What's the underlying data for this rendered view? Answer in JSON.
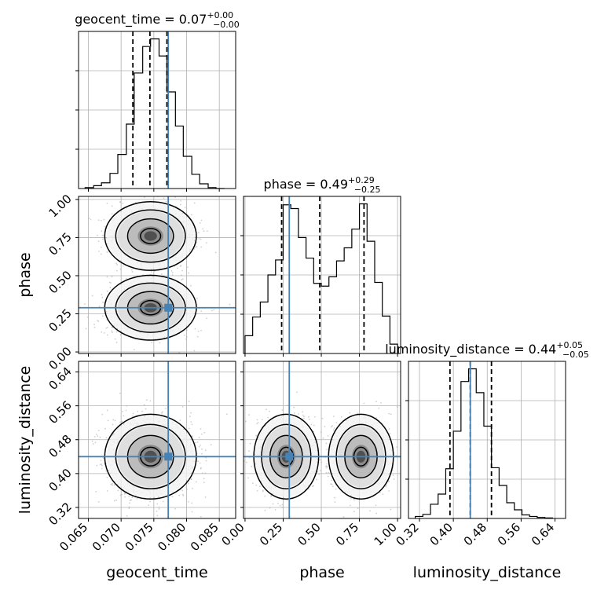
{
  "chart_data": {
    "type": "corner",
    "parameters": [
      "geocent_time",
      "phase",
      "luminosity_distance"
    ],
    "truth": {
      "geocent_time": 0.0772,
      "phase": 0.29,
      "luminosity_distance": 0.44
    },
    "titles": [
      {
        "name": "geocent_time",
        "value": "0.07",
        "plus": "+0.00",
        "minus": "−0.00"
      },
      {
        "name": "phase",
        "value": "0.49",
        "plus": "+0.29",
        "minus": "−0.25"
      },
      {
        "name": "luminosity_distance",
        "value": "0.44",
        "plus": "+0.05",
        "minus": "−0.05"
      }
    ],
    "axes": {
      "geocent_time": {
        "lim": [
          0.0635,
          0.0875
        ],
        "ticks": [
          0.065,
          0.07,
          0.075,
          0.08,
          0.085
        ],
        "tick_labels": [
          "0.065",
          "0.070",
          "0.075",
          "0.080",
          "0.085"
        ]
      },
      "phase": {
        "lim": [
          -0.01,
          1.02
        ],
        "ticks": [
          0.0,
          0.25,
          0.5,
          0.75,
          1.0
        ],
        "tick_labels": [
          "0.00",
          "0.25",
          "0.50",
          "0.75",
          "1.00"
        ]
      },
      "luminosity_distance": {
        "lim": [
          0.294,
          0.665
        ],
        "ticks": [
          0.32,
          0.4,
          0.48,
          0.56,
          0.64
        ],
        "tick_labels": [
          "0.32",
          "0.40",
          "0.48",
          "0.56",
          "0.64"
        ]
      }
    },
    "histograms": [
      {
        "param": "geocent_time",
        "bin_edges": [
          0.0645,
          0.0658,
          0.067,
          0.0683,
          0.0695,
          0.0708,
          0.072,
          0.0733,
          0.0745,
          0.0758,
          0.077,
          0.0783,
          0.0795,
          0.0808,
          0.082,
          0.0833,
          0.0845,
          0.0858
        ],
        "counts": [
          1,
          3,
          6,
          16,
          36,
          68,
          122,
          150,
          158,
          140,
          102,
          66,
          34,
          15,
          5,
          1,
          0
        ],
        "quantiles": [
          0.0718,
          0.0744,
          0.077
        ]
      },
      {
        "param": "phase",
        "bin_edges": [
          0.0,
          0.05,
          0.1,
          0.15,
          0.2,
          0.25,
          0.3,
          0.35,
          0.4,
          0.45,
          0.5,
          0.55,
          0.6,
          0.65,
          0.7,
          0.75,
          0.8,
          0.85,
          0.9,
          0.95,
          1.0
        ],
        "counts": [
          19,
          39,
          55,
          84,
          100,
          159,
          155,
          124,
          102,
          75,
          72,
          82,
          99,
          113,
          133,
          160,
          120,
          76,
          40,
          10
        ],
        "quantiles": [
          0.24,
          0.49,
          0.78
        ]
      },
      {
        "param": "luminosity_distance",
        "bin_edges": [
          0.31,
          0.328,
          0.346,
          0.364,
          0.382,
          0.4,
          0.418,
          0.436,
          0.454,
          0.472,
          0.49,
          0.508,
          0.526,
          0.544,
          0.562,
          0.58,
          0.598,
          0.616,
          0.634
        ],
        "counts": [
          4,
          8,
          28,
          48,
          98,
          172,
          270,
          295,
          248,
          182,
          100,
          65,
          31,
          17,
          7,
          4,
          2,
          1
        ],
        "quantiles": [
          0.392,
          0.44,
          0.49
        ]
      }
    ],
    "contour_panels": [
      {
        "x": "geocent_time",
        "y": "phase",
        "blobs": [
          {
            "x": 0.0745,
            "y": 0.29,
            "sx": 0.0028,
            "sy": 0.085,
            "w": 1.0
          },
          {
            "x": 0.0745,
            "y": 0.76,
            "sx": 0.0028,
            "sy": 0.09,
            "w": 0.9
          }
        ]
      },
      {
        "x": "geocent_time",
        "y": "luminosity_distance",
        "blobs": [
          {
            "x": 0.0745,
            "y": 0.44,
            "sx": 0.0028,
            "sy": 0.04,
            "w": 1.0
          }
        ]
      },
      {
        "x": "phase",
        "y": "luminosity_distance",
        "blobs": [
          {
            "x": 0.27,
            "y": 0.44,
            "sx": 0.085,
            "sy": 0.04,
            "w": 1.0
          },
          {
            "x": 0.76,
            "y": 0.44,
            "sx": 0.085,
            "sy": 0.04,
            "w": 0.95
          }
        ]
      }
    ],
    "grid": true,
    "colors": {
      "truth": "#4682b4",
      "hist": "#000000",
      "points": "#aaaaaa",
      "grid": "#b0b0b0"
    }
  }
}
